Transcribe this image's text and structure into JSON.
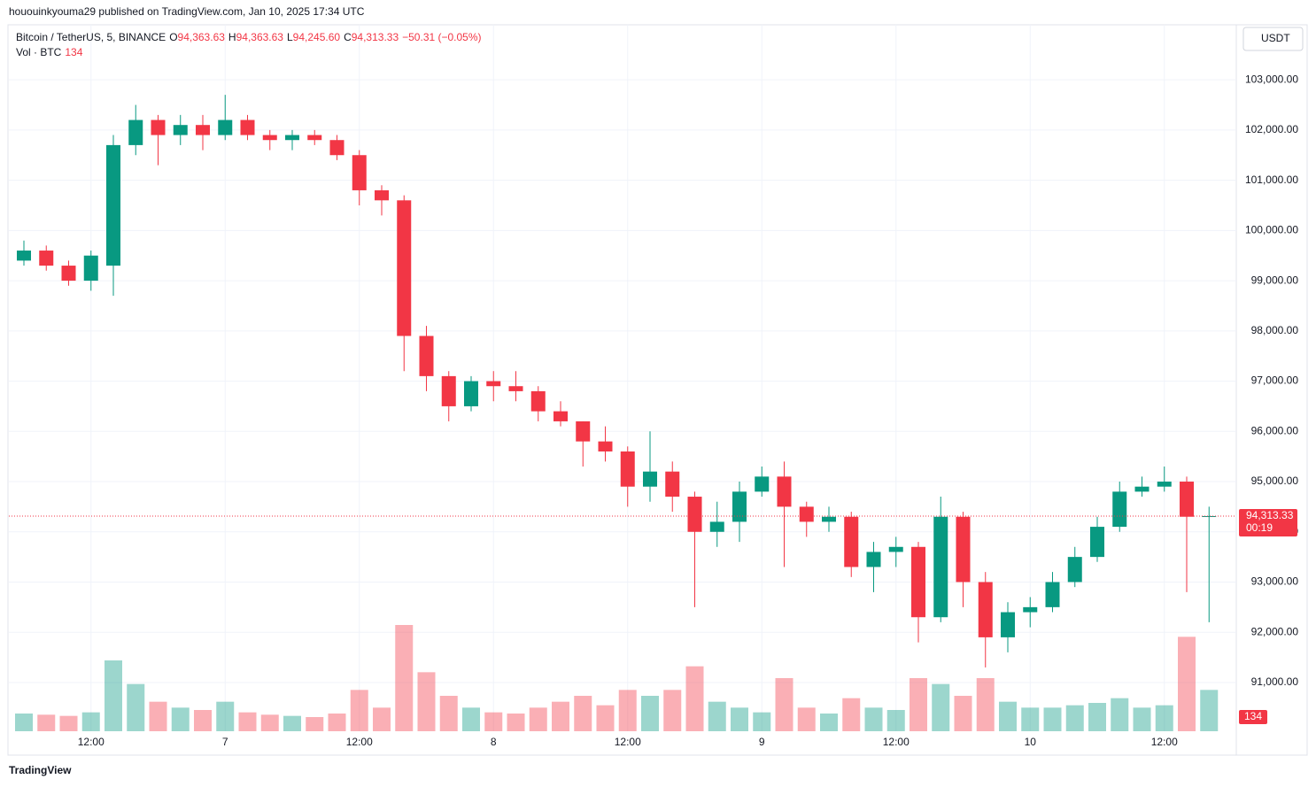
{
  "chart_data": {
    "type": "candlestick",
    "published": "hououinkyouma29 published on TradingView.com, Jan 10, 2025 17:34 UTC",
    "brand": "TradingView",
    "currency": "USDT",
    "header": {
      "symbol": "Bitcoin / TetherUS, 5, BINANCE",
      "ohlc": [
        {
          "key": "O",
          "value": 94363.63,
          "label": "94,363.63"
        },
        {
          "key": "H",
          "value": 94363.63,
          "label": "94,363.63"
        },
        {
          "key": "L",
          "value": 94245.6,
          "label": "94,245.60"
        },
        {
          "key": "C",
          "value": 94313.33,
          "label": "94,313.33"
        }
      ],
      "change": {
        "value": -50.31,
        "label": "−50.31 (−0.05%)"
      },
      "volume_title": "Vol · BTC",
      "volume_value": 134
    },
    "categories": [
      null,
      null,
      null,
      "12:00",
      null,
      null,
      null,
      null,
      null,
      "7",
      null,
      null,
      null,
      null,
      null,
      "12:00",
      null,
      null,
      null,
      null,
      null,
      "8",
      null,
      null,
      null,
      null,
      null,
      "12:00",
      null,
      null,
      null,
      null,
      null,
      "9",
      null,
      null,
      null,
      null,
      null,
      "12:00",
      null,
      null,
      null,
      null,
      null,
      "10",
      null,
      null,
      null,
      null,
      null,
      "12:00",
      null,
      null
    ],
    "open": [
      99400,
      99600,
      99300,
      99000,
      99300,
      101700,
      102200,
      101900,
      102100,
      101900,
      102200,
      101900,
      101800,
      101900,
      101800,
      101500,
      100800,
      100600,
      97900,
      97100,
      96500,
      97000,
      96900,
      96800,
      96400,
      96200,
      95800,
      95600,
      94900,
      95200,
      94700,
      94000,
      94200,
      94800,
      95100,
      94500,
      94200,
      94300,
      93300,
      93600,
      93700,
      92300,
      94300,
      93000,
      91900,
      92400,
      92500,
      93000,
      93500,
      94100,
      94800,
      94900,
      95000,
      94300
    ],
    "high": [
      99800,
      99700,
      99400,
      99600,
      101900,
      102500,
      102300,
      102300,
      102300,
      102700,
      102300,
      102000,
      102000,
      102000,
      101900,
      101600,
      100900,
      100700,
      98100,
      97200,
      97100,
      97200,
      97200,
      96900,
      96600,
      96200,
      96100,
      95700,
      96000,
      95400,
      94800,
      94600,
      95000,
      95300,
      95400,
      94600,
      94500,
      94400,
      93800,
      93900,
      93800,
      94700,
      94400,
      93200,
      92600,
      92700,
      93200,
      93700,
      94300,
      95000,
      95100,
      95300,
      95100,
      94500
    ],
    "low": [
      99300,
      99200,
      98900,
      98800,
      98700,
      101500,
      101300,
      101700,
      101600,
      101800,
      101800,
      101600,
      101600,
      101700,
      101400,
      100500,
      100300,
      97200,
      96800,
      96200,
      96400,
      96600,
      96600,
      96200,
      96100,
      95300,
      95400,
      94500,
      94600,
      94400,
      92500,
      93700,
      93800,
      94700,
      93300,
      93900,
      94000,
      93100,
      92800,
      93300,
      91800,
      92200,
      92500,
      91300,
      91600,
      92100,
      92400,
      92900,
      93400,
      94000,
      94700,
      94800,
      92800,
      92200
    ],
    "close": [
      99600,
      99300,
      99000,
      99500,
      101700,
      102200,
      101900,
      102100,
      101900,
      102200,
      101900,
      101800,
      101900,
      101800,
      101500,
      100800,
      100600,
      97900,
      97100,
      96500,
      97000,
      96900,
      96800,
      96400,
      96200,
      95800,
      95600,
      94900,
      95200,
      94700,
      94000,
      94200,
      94800,
      95100,
      94500,
      94200,
      94300,
      93300,
      93600,
      93700,
      92300,
      94300,
      93000,
      91900,
      92400,
      92500,
      93000,
      93500,
      94100,
      94800,
      94900,
      95000,
      94300,
      94313.33
    ],
    "volume": [
      1500,
      1400,
      1300,
      1600,
      6000,
      4000,
      2500,
      2000,
      1800,
      2500,
      1600,
      1400,
      1300,
      1200,
      1500,
      3500,
      2000,
      9000,
      5000,
      3000,
      2000,
      1600,
      1500,
      2000,
      2500,
      3000,
      2200,
      3500,
      3000,
      3500,
      5500,
      2500,
      2000,
      1600,
      4500,
      2000,
      1500,
      2800,
      2000,
      1800,
      4500,
      4000,
      3000,
      4500,
      2500,
      2000,
      2000,
      2200,
      2400,
      2800,
      2000,
      2200,
      8000,
      3500
    ],
    "volume_lim": [
      0,
      15000
    ],
    "ylim": [
      90030,
      104060
    ],
    "yticks": [
      {
        "value": 91000,
        "label": "91,000.00"
      },
      {
        "value": 92000,
        "label": "92,000.00"
      },
      {
        "value": 93000,
        "label": "93,000.00"
      },
      {
        "value": 94000,
        "label": "94,000.00"
      },
      {
        "value": 95000,
        "label": "95,000.00"
      },
      {
        "value": 96000,
        "label": "96,000.00"
      },
      {
        "value": 97000,
        "label": "97,000.00"
      },
      {
        "value": 98000,
        "label": "98,000.00"
      },
      {
        "value": 99000,
        "label": "99,000.00"
      },
      {
        "value": 100000,
        "label": "100,000.00"
      },
      {
        "value": 101000,
        "label": "101,000.00"
      },
      {
        "value": 102000,
        "label": "102,000.00"
      },
      {
        "value": 103000,
        "label": "103,000.00"
      }
    ],
    "last_price": {
      "value": 94313.33,
      "label": "94,313.33"
    },
    "countdown": "00:19",
    "up_color": "#089981",
    "down_color": "#f23645",
    "grid": true
  }
}
